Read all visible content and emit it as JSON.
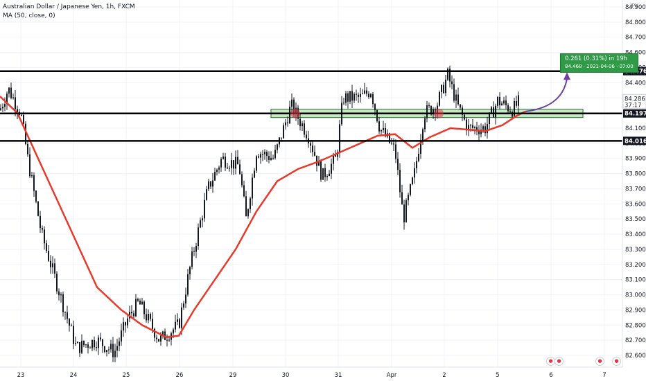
{
  "header": {
    "symbol_line": "Australian Dollar / Japanese Yen, 1h, FXCM",
    "indicator_line": "MA (50, close, 0)"
  },
  "currency_label": "JPY",
  "price_axis": {
    "ticks": [
      "84.900",
      "84.800",
      "84.700",
      "84.600",
      "84.500",
      "84.400",
      "84.300",
      "84.200",
      "84.100",
      "84.000",
      "83.900",
      "83.800",
      "83.700",
      "83.600",
      "83.500",
      "83.400",
      "83.300",
      "83.200",
      "83.100",
      "83.000",
      "82.900",
      "82.800",
      "82.700",
      "82.600"
    ],
    "current_price": "84.286",
    "countdown": "37:17"
  },
  "time_axis": {
    "labels": [
      "23",
      "24",
      "25",
      "26",
      "29",
      "30",
      "31",
      "Apr",
      "2",
      "5",
      "6",
      "7"
    ]
  },
  "levels": [
    {
      "name": "resistance",
      "price": 84.476,
      "label": "84.476"
    },
    {
      "name": "support-mid",
      "price": 84.197,
      "label": "84.197"
    },
    {
      "name": "support-low",
      "price": 84.016,
      "label": "84.016"
    }
  ],
  "projection": {
    "line1": "0.261 (0.31%) in 19h",
    "line2": "84.468 · 2021-04-06 · 07:00"
  },
  "colors": {
    "ma": "#e8392a",
    "candle": "#131722",
    "zone_fill": "#c8e8c4",
    "zone_border": "#1b6e2a",
    "projection_box": "#2f9b47",
    "projection_arrow": "#6b3fa0",
    "touch_marker": "#e0384a"
  },
  "chart_data": {
    "type": "line",
    "title": "Australian Dollar / Japanese Yen, 1h, FXCM",
    "ylim": [
      82.55,
      84.95
    ],
    "series": [
      {
        "name": "Australian Dollar / Japanese Yen",
        "x": [
          "23",
          "23",
          "23",
          "23",
          "24",
          "24",
          "24",
          "24",
          "24",
          "25",
          "25",
          "25",
          "25",
          "26",
          "26",
          "26",
          "26",
          "29",
          "29",
          "29",
          "29",
          "30",
          "30",
          "30",
          "30",
          "31",
          "31",
          "31",
          "31",
          "Apr",
          "Apr",
          "Apr",
          "Apr",
          "2",
          "2",
          "2",
          "5",
          "5",
          "5"
        ],
        "values": [
          84.3,
          84.2,
          83.95,
          83.7,
          83.4,
          83.1,
          82.9,
          82.7,
          82.6,
          82.75,
          82.62,
          82.85,
          82.95,
          82.7,
          82.95,
          83.3,
          83.7,
          83.85,
          83.8,
          83.6,
          83.9,
          84.0,
          84.25,
          84.05,
          83.8,
          83.85,
          84.25,
          84.35,
          84.25,
          84.15,
          83.5,
          83.9,
          84.2,
          84.45,
          84.3,
          84.1,
          84.05,
          84.3,
          84.28
        ]
      },
      {
        "name": "MA (50, close, 0)",
        "x": [
          "23",
          "23",
          "24",
          "24",
          "24",
          "25",
          "25",
          "26",
          "26",
          "29",
          "29",
          "30",
          "30",
          "31",
          "31",
          "Apr",
          "Apr",
          "2",
          "2",
          "5",
          "5"
        ],
        "values": [
          84.3,
          84.2,
          83.7,
          83.3,
          82.95,
          82.8,
          82.72,
          82.8,
          83.0,
          83.2,
          83.4,
          83.7,
          83.82,
          83.9,
          83.98,
          84.06,
          84.0,
          84.06,
          84.1,
          84.1,
          84.2
        ]
      }
    ],
    "annotations": [
      "84.476",
      "84.197",
      "84.016",
      "0.261 (0.31%) in 19h"
    ]
  }
}
